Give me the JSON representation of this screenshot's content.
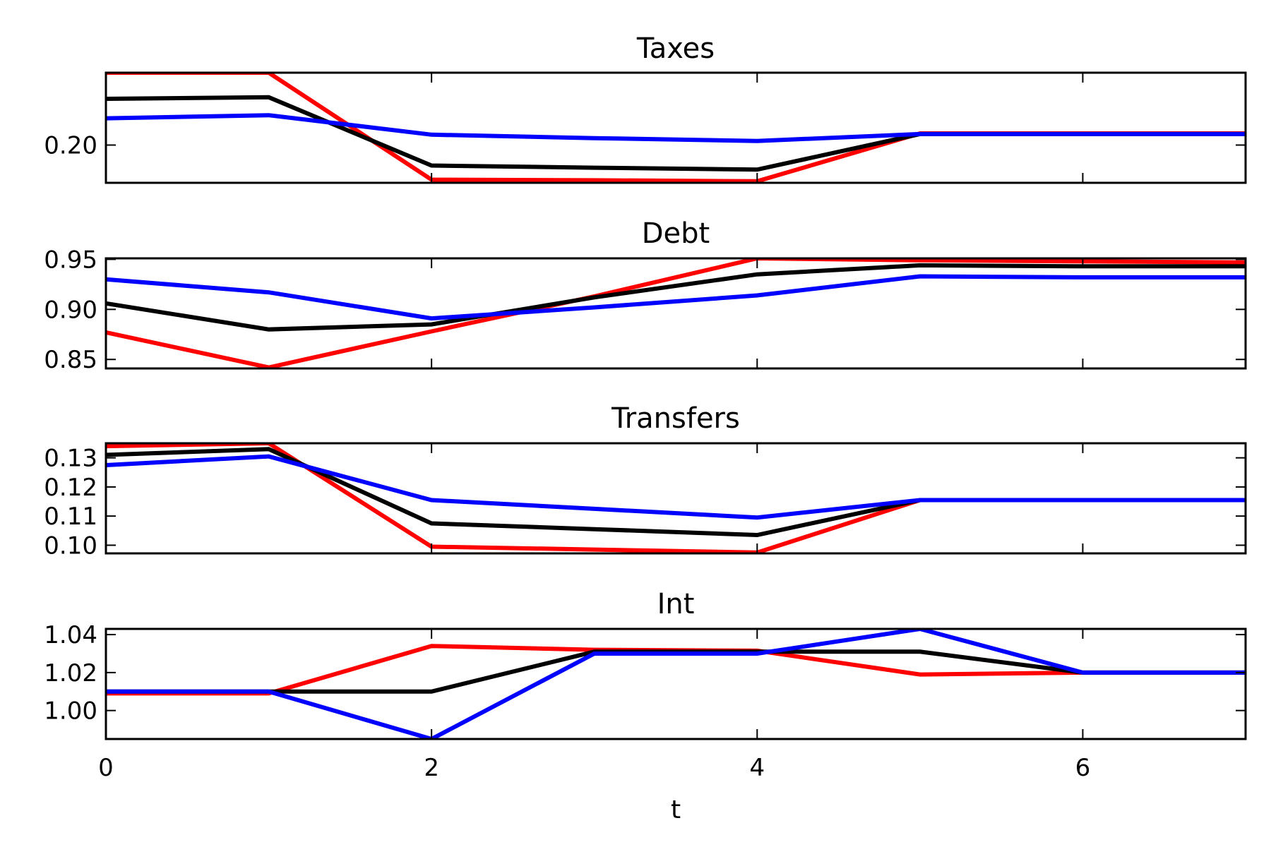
{
  "chart_data": [
    {
      "type": "line",
      "title": "Taxes",
      "x": [
        0,
        1,
        2,
        3,
        4,
        5,
        6,
        7
      ],
      "ylim": [
        0.188,
        0.223
      ],
      "yticks": [
        0.2
      ],
      "ytick_labels": [
        "0.20"
      ],
      "series": [
        {
          "color": "#ff0000",
          "values": [
            0.223,
            0.223,
            0.189,
            0.1888,
            0.1885,
            0.2037,
            0.2037,
            0.2037
          ]
        },
        {
          "color": "#000000",
          "values": [
            0.2147,
            0.2152,
            0.1935,
            0.1928,
            0.1922,
            0.2035,
            0.2035,
            0.2035
          ]
        },
        {
          "color": "#0000ff",
          "values": [
            0.2085,
            0.2095,
            0.2033,
            0.2022,
            0.2013,
            0.2035,
            0.2035,
            0.2035
          ]
        }
      ]
    },
    {
      "type": "line",
      "title": "Debt",
      "x": [
        0,
        1,
        2,
        3,
        4,
        5,
        6,
        7
      ],
      "ylim": [
        0.841,
        0.951
      ],
      "yticks": [
        0.85,
        0.9,
        0.95
      ],
      "ytick_labels": [
        "0.85",
        "0.90",
        "0.95"
      ],
      "series": [
        {
          "color": "#ff0000",
          "values": [
            0.877,
            0.842,
            0.878,
            0.913,
            0.951,
            0.949,
            0.948,
            0.947
          ]
        },
        {
          "color": "#000000",
          "values": [
            0.906,
            0.88,
            0.885,
            0.912,
            0.935,
            0.944,
            0.943,
            0.943
          ]
        },
        {
          "color": "#0000ff",
          "values": [
            0.93,
            0.917,
            0.891,
            0.902,
            0.914,
            0.933,
            0.932,
            0.932
          ]
        }
      ]
    },
    {
      "type": "line",
      "title": "Transfers",
      "x": [
        0,
        1,
        2,
        3,
        4,
        5,
        6,
        7
      ],
      "ylim": [
        0.0972,
        0.135
      ],
      "yticks": [
        0.1,
        0.11,
        0.12,
        0.13
      ],
      "ytick_labels": [
        "0.10",
        "0.11",
        "0.12",
        "0.13"
      ],
      "series": [
        {
          "color": "#ff0000",
          "values": [
            0.134,
            0.135,
            0.0995,
            0.0985,
            0.0975,
            0.1155,
            0.1155,
            0.1155
          ]
        },
        {
          "color": "#000000",
          "values": [
            0.131,
            0.133,
            0.1075,
            0.1055,
            0.1035,
            0.1155,
            0.1155,
            0.1155
          ]
        },
        {
          "color": "#0000ff",
          "values": [
            0.1275,
            0.1305,
            0.1155,
            0.1125,
            0.1095,
            0.1155,
            0.1155,
            0.1155
          ]
        }
      ]
    },
    {
      "type": "line",
      "title": "Int",
      "xlabel": "t",
      "x": [
        0,
        1,
        2,
        3,
        4,
        5,
        6,
        7
      ],
      "xlim": [
        0,
        7
      ],
      "xticks": [
        0,
        2,
        4,
        6
      ],
      "xtick_labels": [
        "0",
        "2",
        "4",
        "6"
      ],
      "ylim": [
        0.985,
        1.043
      ],
      "yticks": [
        1.0,
        1.02,
        1.04
      ],
      "ytick_labels": [
        "1.00",
        "1.02",
        "1.04"
      ],
      "series": [
        {
          "color": "#ff0000",
          "values": [
            1.009,
            1.009,
            1.034,
            1.032,
            1.0315,
            1.019,
            1.02,
            1.02
          ]
        },
        {
          "color": "#000000",
          "values": [
            1.01,
            1.01,
            1.01,
            1.031,
            1.031,
            1.031,
            1.02,
            1.02
          ]
        },
        {
          "color": "#0000ff",
          "values": [
            1.01,
            1.01,
            0.985,
            1.03,
            1.03,
            1.043,
            1.02,
            1.02
          ]
        }
      ]
    }
  ]
}
